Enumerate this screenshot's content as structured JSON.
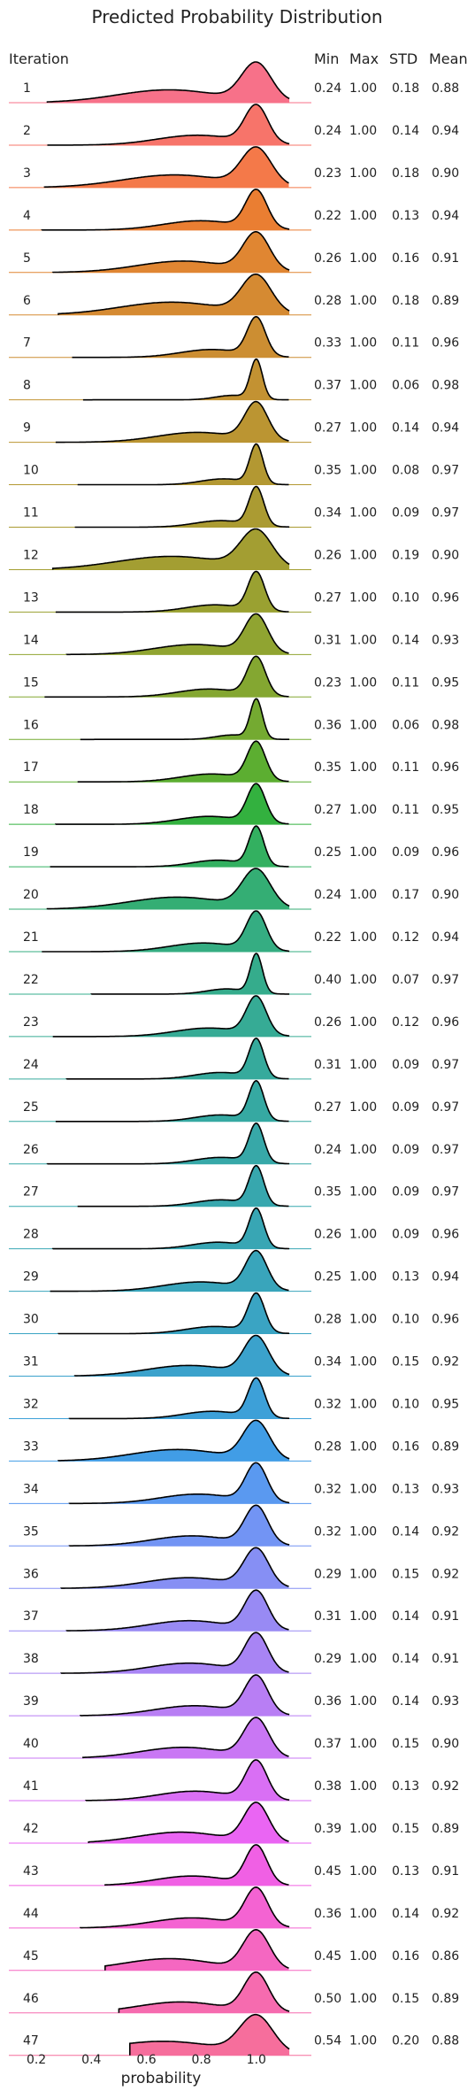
{
  "chart_data": {
    "type": "ridgeline",
    "title": "Predicted Probability Distribution",
    "xlabel": "probability",
    "ylabel": "Iteration",
    "xlim": [
      0.1,
      1.2
    ],
    "xticks": [
      "0.2",
      "0.4",
      "0.6",
      "0.8",
      "1.0"
    ],
    "xtick_values": [
      0.2,
      0.4,
      0.6,
      0.8,
      1.0
    ],
    "columns": [
      "Min",
      "Max",
      "STD",
      "Mean"
    ],
    "series": [
      {
        "iteration": "1",
        "min": "0.24",
        "max": "1.00",
        "std": "0.18",
        "mean": "0.88",
        "color": "#f77189"
      },
      {
        "iteration": "2",
        "min": "0.24",
        "max": "1.00",
        "std": "0.14",
        "mean": "0.94",
        "color": "#f7746a"
      },
      {
        "iteration": "3",
        "min": "0.23",
        "max": "1.00",
        "std": "0.18",
        "mean": "0.90",
        "color": "#f47949"
      },
      {
        "iteration": "4",
        "min": "0.22",
        "max": "1.00",
        "std": "0.13",
        "mean": "0.94",
        "color": "#ea7e32"
      },
      {
        "iteration": "5",
        "min": "0.26",
        "max": "1.00",
        "std": "0.16",
        "mean": "0.91",
        "color": "#e08632"
      },
      {
        "iteration": "6",
        "min": "0.28",
        "max": "1.00",
        "std": "0.18",
        "mean": "0.89",
        "color": "#d58a32"
      },
      {
        "iteration": "7",
        "min": "0.33",
        "max": "1.00",
        "std": "0.11",
        "mean": "0.96",
        "color": "#cc8e32"
      },
      {
        "iteration": "8",
        "min": "0.37",
        "max": "1.00",
        "std": "0.06",
        "mean": "0.98",
        "color": "#c39232"
      },
      {
        "iteration": "9",
        "min": "0.27",
        "max": "1.00",
        "std": "0.14",
        "mean": "0.94",
        "color": "#bb9532"
      },
      {
        "iteration": "10",
        "min": "0.35",
        "max": "1.00",
        "std": "0.08",
        "mean": "0.97",
        "color": "#b39832"
      },
      {
        "iteration": "11",
        "min": "0.34",
        "max": "1.00",
        "std": "0.09",
        "mean": "0.97",
        "color": "#ab9b32"
      },
      {
        "iteration": "12",
        "min": "0.26",
        "max": "1.00",
        "std": "0.19",
        "mean": "0.90",
        "color": "#a39e32"
      },
      {
        "iteration": "13",
        "min": "0.27",
        "max": "1.00",
        "std": "0.10",
        "mean": "0.96",
        "color": "#9aa131"
      },
      {
        "iteration": "14",
        "min": "0.31",
        "max": "1.00",
        "std": "0.14",
        "mean": "0.93",
        "color": "#90a431"
      },
      {
        "iteration": "15",
        "min": "0.23",
        "max": "1.00",
        "std": "0.11",
        "mean": "0.95",
        "color": "#84a731"
      },
      {
        "iteration": "16",
        "min": "0.36",
        "max": "1.00",
        "std": "0.06",
        "mean": "0.98",
        "color": "#74aa31"
      },
      {
        "iteration": "17",
        "min": "0.35",
        "max": "1.00",
        "std": "0.11",
        "mean": "0.96",
        "color": "#5cae31"
      },
      {
        "iteration": "18",
        "min": "0.27",
        "max": "1.00",
        "std": "0.11",
        "mean": "0.95",
        "color": "#33b13f"
      },
      {
        "iteration": "19",
        "min": "0.25",
        "max": "1.00",
        "std": "0.09",
        "mean": "0.96",
        "color": "#33b060"
      },
      {
        "iteration": "20",
        "min": "0.24",
        "max": "1.00",
        "std": "0.17",
        "mean": "0.90",
        "color": "#34ae74"
      },
      {
        "iteration": "21",
        "min": "0.22",
        "max": "1.00",
        "std": "0.12",
        "mean": "0.94",
        "color": "#35ad82"
      },
      {
        "iteration": "22",
        "min": "0.40",
        "max": "1.00",
        "std": "0.07",
        "mean": "0.97",
        "color": "#35ac8c"
      },
      {
        "iteration": "23",
        "min": "0.26",
        "max": "1.00",
        "std": "0.12",
        "mean": "0.96",
        "color": "#36ab95"
      },
      {
        "iteration": "24",
        "min": "0.31",
        "max": "1.00",
        "std": "0.09",
        "mean": "0.97",
        "color": "#36aa9c"
      },
      {
        "iteration": "25",
        "min": "0.27",
        "max": "1.00",
        "std": "0.09",
        "mean": "0.97",
        "color": "#36a9a2"
      },
      {
        "iteration": "26",
        "min": "0.24",
        "max": "1.00",
        "std": "0.09",
        "mean": "0.97",
        "color": "#37a8a8"
      },
      {
        "iteration": "27",
        "min": "0.35",
        "max": "1.00",
        "std": "0.09",
        "mean": "0.97",
        "color": "#37a7ae"
      },
      {
        "iteration": "28",
        "min": "0.26",
        "max": "1.00",
        "std": "0.09",
        "mean": "0.96",
        "color": "#38a6b4"
      },
      {
        "iteration": "29",
        "min": "0.25",
        "max": "1.00",
        "std": "0.13",
        "mean": "0.94",
        "color": "#39a5bb"
      },
      {
        "iteration": "30",
        "min": "0.28",
        "max": "1.00",
        "std": "0.10",
        "mean": "0.96",
        "color": "#3aa4c3"
      },
      {
        "iteration": "31",
        "min": "0.34",
        "max": "1.00",
        "std": "0.15",
        "mean": "0.92",
        "color": "#3ba2cc"
      },
      {
        "iteration": "32",
        "min": "0.32",
        "max": "1.00",
        "std": "0.10",
        "mean": "0.95",
        "color": "#3da0d8"
      },
      {
        "iteration": "33",
        "min": "0.28",
        "max": "1.00",
        "std": "0.16",
        "mean": "0.89",
        "color": "#419de6"
      },
      {
        "iteration": "34",
        "min": "0.32",
        "max": "1.00",
        "std": "0.13",
        "mean": "0.93",
        "color": "#5a99f0"
      },
      {
        "iteration": "35",
        "min": "0.32",
        "max": "1.00",
        "std": "0.14",
        "mean": "0.92",
        "color": "#7294f4"
      },
      {
        "iteration": "36",
        "min": "0.29",
        "max": "1.00",
        "std": "0.15",
        "mean": "0.92",
        "color": "#868ff4"
      },
      {
        "iteration": "37",
        "min": "0.31",
        "max": "1.00",
        "std": "0.14",
        "mean": "0.91",
        "color": "#988af4"
      },
      {
        "iteration": "38",
        "min": "0.29",
        "max": "1.00",
        "std": "0.14",
        "mean": "0.91",
        "color": "#a884f4"
      },
      {
        "iteration": "39",
        "min": "0.36",
        "max": "1.00",
        "std": "0.14",
        "mean": "0.93",
        "color": "#b87ef4"
      },
      {
        "iteration": "40",
        "min": "0.37",
        "max": "1.00",
        "std": "0.15",
        "mean": "0.90",
        "color": "#c977f4"
      },
      {
        "iteration": "41",
        "min": "0.38",
        "max": "1.00",
        "std": "0.13",
        "mean": "0.92",
        "color": "#d96ff4"
      },
      {
        "iteration": "42",
        "min": "0.39",
        "max": "1.00",
        "std": "0.15",
        "mean": "0.89",
        "color": "#ea65f3"
      },
      {
        "iteration": "43",
        "min": "0.45",
        "max": "1.00",
        "std": "0.13",
        "mean": "0.91",
        "color": "#f060e4"
      },
      {
        "iteration": "44",
        "min": "0.36",
        "max": "1.00",
        "std": "0.14",
        "mean": "0.92",
        "color": "#f463d2"
      },
      {
        "iteration": "45",
        "min": "0.45",
        "max": "1.00",
        "std": "0.16",
        "mean": "0.86",
        "color": "#f567c1"
      },
      {
        "iteration": "46",
        "min": "0.50",
        "max": "1.00",
        "std": "0.15",
        "mean": "0.89",
        "color": "#f66baf"
      },
      {
        "iteration": "47",
        "min": "0.54",
        "max": "1.00",
        "std": "0.20",
        "mean": "0.88",
        "color": "#f66e9c"
      }
    ]
  }
}
